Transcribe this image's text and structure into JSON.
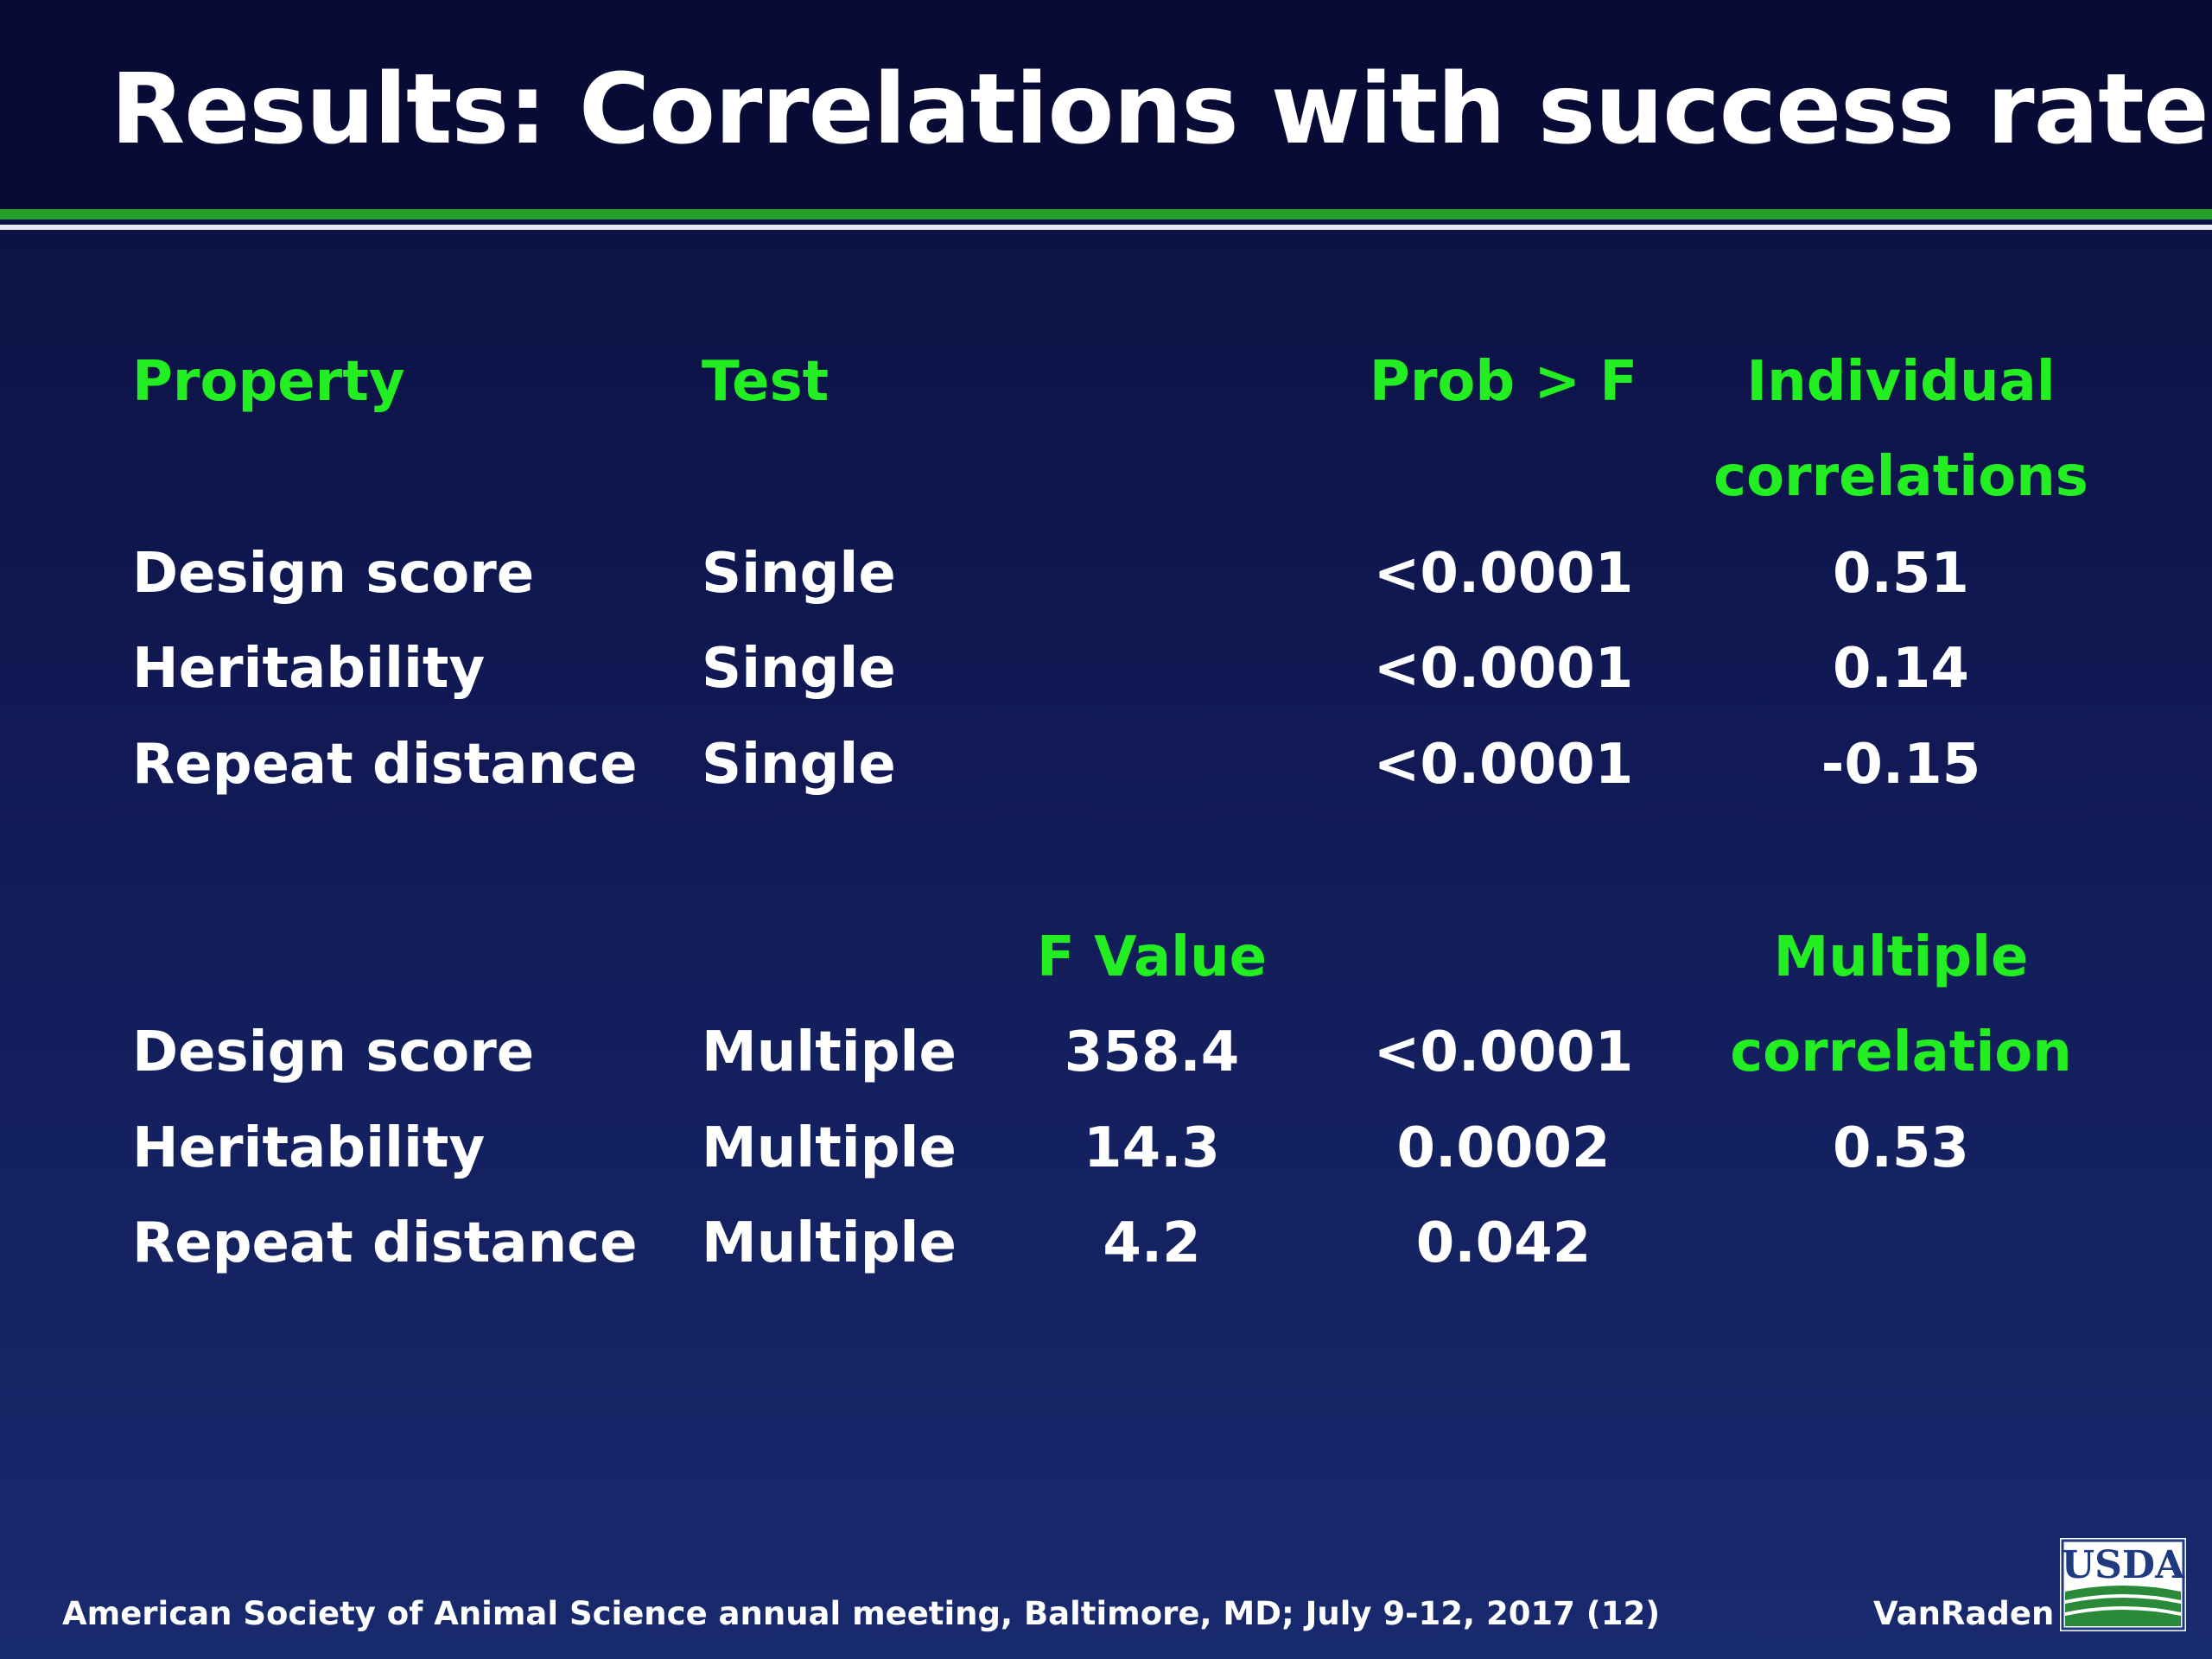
{
  "slide": {
    "title": "Results: Correlations with success rate"
  },
  "single_table": {
    "headers": {
      "property": "Property",
      "test": "Test",
      "prob": "Prob > F",
      "corr_line1": "Individual",
      "corr_line2": "correlations"
    },
    "rows": [
      {
        "property": "Design score",
        "test": "Single",
        "prob": "<0.0001",
        "corr": "0.51"
      },
      {
        "property": "Heritability",
        "test": "Single",
        "prob": "<0.0001",
        "corr": "0.14"
      },
      {
        "property": "Repeat distance",
        "test": "Single",
        "prob": "<0.0001",
        "corr": "-0.15"
      }
    ]
  },
  "multiple_table": {
    "headers": {
      "fvalue": "F Value",
      "corr_line1": "Multiple",
      "corr_line2": "correlation"
    },
    "rows": [
      {
        "property": "Design score",
        "test": "Multiple",
        "fvalue": "358.4",
        "prob": "<0.0001"
      },
      {
        "property": "Heritability",
        "test": "Multiple",
        "fvalue": "14.3",
        "prob": "0.0002",
        "corr": "0.53"
      },
      {
        "property": "Repeat distance",
        "test": "Multiple",
        "fvalue": "4.2",
        "prob": "0.042"
      }
    ]
  },
  "footer": {
    "citation": "American Society of Animal Science annual meeting, Baltimore, MD; July  9-12, 2017 (12)",
    "author": "VanRaden",
    "logo_text": "USDA"
  },
  "colors": {
    "background": "#111a55",
    "header_band": "#070b36",
    "header_text": "#22ee22",
    "value_text": "#ffffff",
    "rule_green": "#25a02a"
  }
}
